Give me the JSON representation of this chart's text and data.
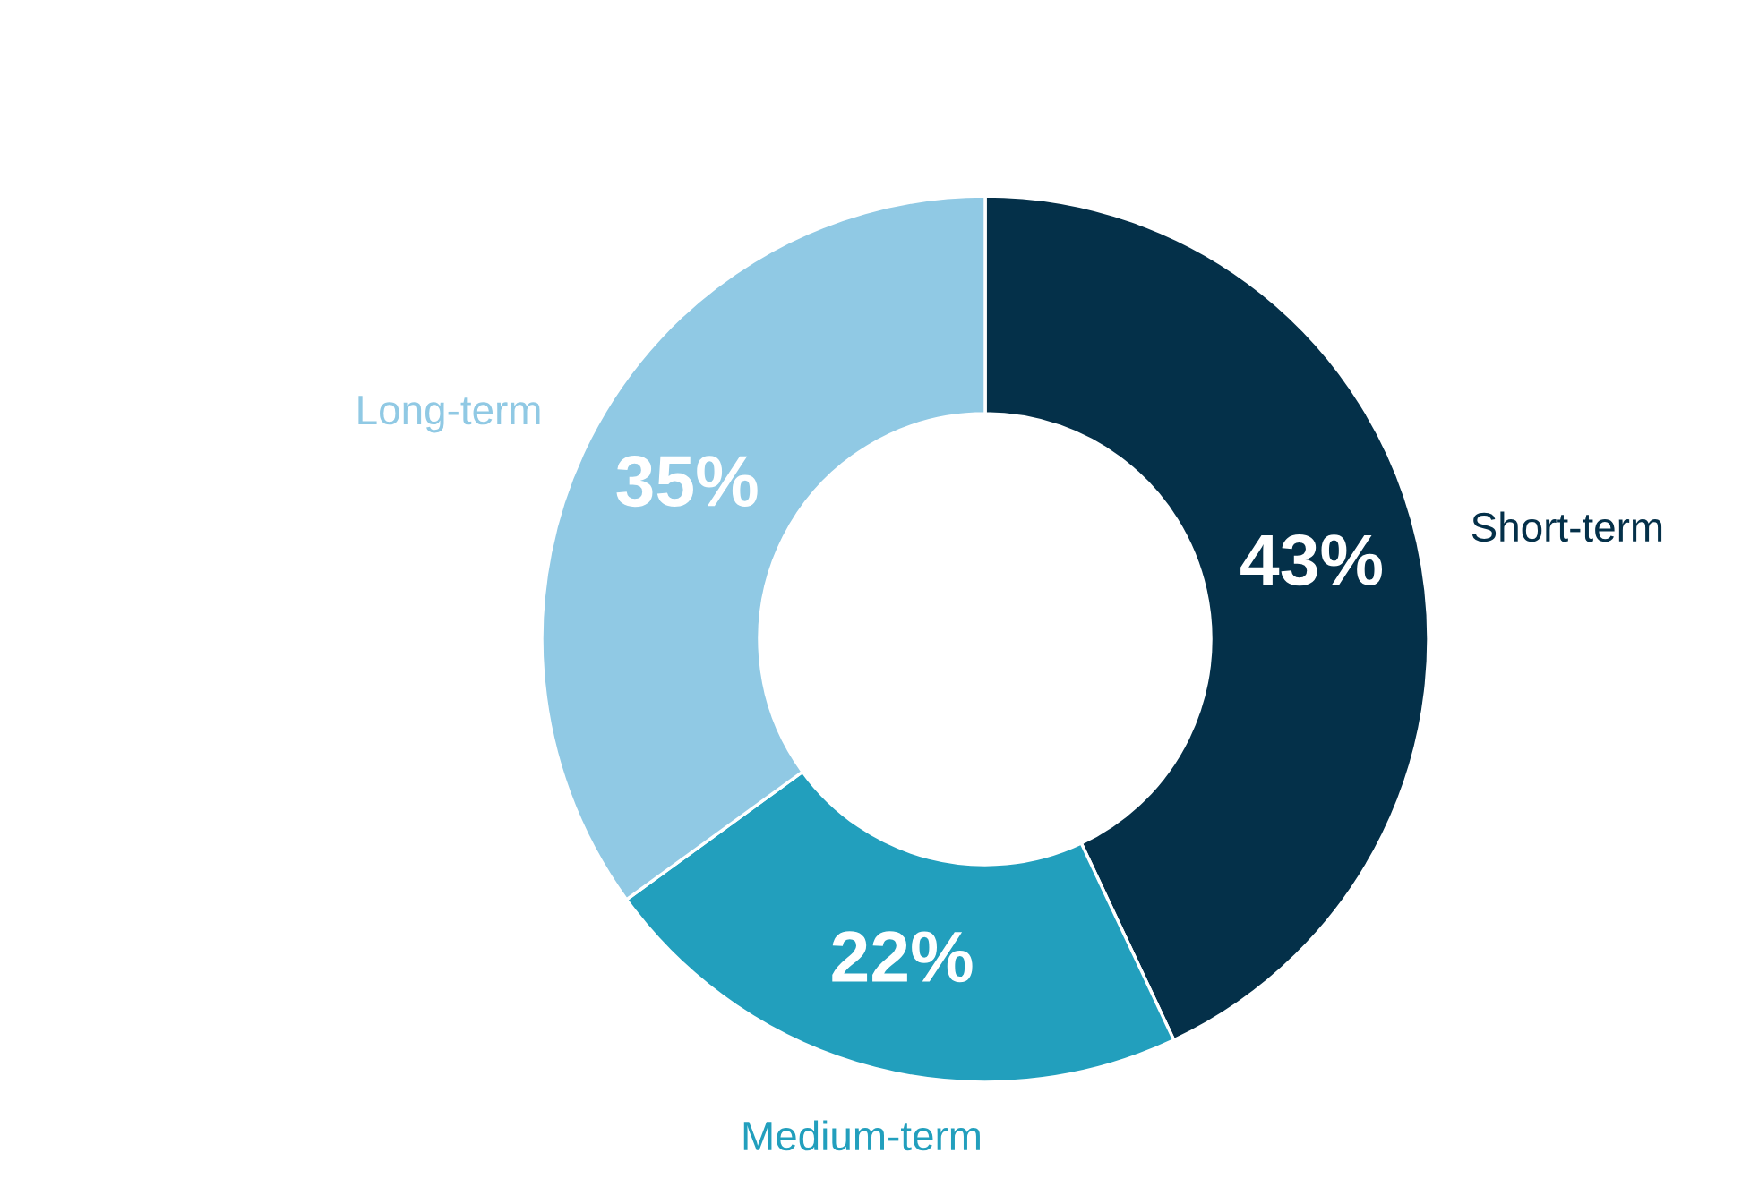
{
  "chart_data": {
    "type": "donut",
    "categories": [
      "Short-term",
      "Medium-term",
      "Long-term"
    ],
    "values": [
      43,
      22,
      35
    ],
    "colors": [
      "#043049",
      "#229fbd",
      "#90c9e4"
    ],
    "value_labels": [
      "43%",
      "22%",
      "35%"
    ]
  }
}
